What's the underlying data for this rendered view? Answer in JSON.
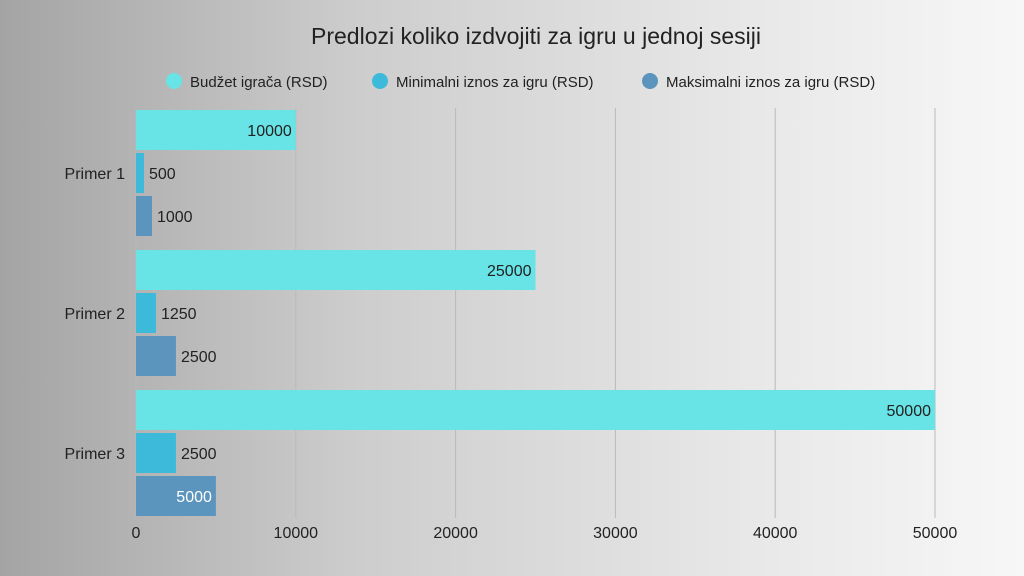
{
  "chart_data": {
    "type": "bar",
    "orientation": "horizontal",
    "title": "Predlozi koliko izdvojiti za igru u jednoj sesiji",
    "categories": [
      "Primer 1",
      "Primer 2",
      "Primer 3"
    ],
    "series": [
      {
        "name": "Budžet igrača (RSD)",
        "color": "#68e3e6",
        "values": [
          10000,
          25000,
          50000
        ]
      },
      {
        "name": "Minimalni iznos za igru (RSD)",
        "color": "#3dbad9",
        "values": [
          500,
          1250,
          2500
        ]
      },
      {
        "name": "Maksimalni iznos za igru (RSD)",
        "color": "#5b94bd",
        "values": [
          1000,
          2500,
          5000
        ]
      }
    ],
    "xlim": [
      0,
      50000
    ],
    "xticks": [
      0,
      10000,
      20000,
      30000,
      40000,
      50000
    ],
    "grid": true,
    "legend_position": "top"
  }
}
